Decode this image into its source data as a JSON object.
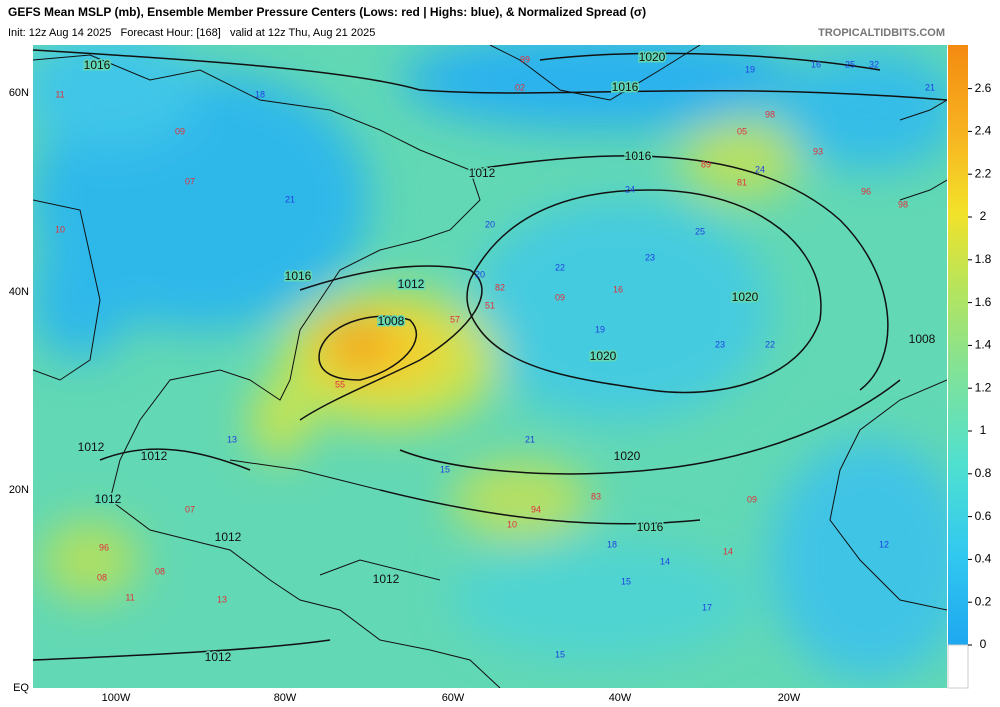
{
  "header": {
    "title": "GEFS Mean MSLP (mb), Ensemble Member Pressure Centers (Lows: red | Highs: blue), & Normalized Spread (σ)",
    "subtitle": "Init: 12z Aug 14 2025   Forecast Hour: [168]   valid at 12z Thu, Aug 21 2025",
    "source": "TROPICALTIDBITS.COM"
  },
  "map": {
    "lat_labels": [
      "60N",
      "40N",
      "20N",
      "EQ"
    ],
    "lon_labels": [
      "100W",
      "80W",
      "60W",
      "40W",
      "20W"
    ],
    "isobars": [
      "1016",
      "1020",
      "1016",
      "1016",
      "1012",
      "1016",
      "1012",
      "1008",
      "1020",
      "1020",
      "1020",
      "1016",
      "1012",
      "1012",
      "1012",
      "1012",
      "1012",
      "1012",
      "1008"
    ],
    "lows": [
      "09",
      "11",
      "02",
      "99",
      "98",
      "05",
      "07",
      "89",
      "81",
      "93",
      "96",
      "98",
      "10",
      "55",
      "57",
      "51",
      "82",
      "09",
      "16",
      "83",
      "94",
      "10",
      "96",
      "08",
      "11",
      "13",
      "07",
      "09",
      "14",
      "08"
    ],
    "highs": [
      "16",
      "25",
      "32",
      "21",
      "18",
      "20",
      "24",
      "23",
      "25",
      "22",
      "19",
      "23",
      "21",
      "15",
      "13",
      "18",
      "17",
      "15",
      "14",
      "22",
      "20",
      "24",
      "21",
      "19",
      "15",
      "12"
    ]
  },
  "colorbar": {
    "ticks": [
      0,
      0.2,
      0.4,
      0.6,
      0.8,
      1,
      1.2,
      1.4,
      1.6,
      1.8,
      2,
      2.2,
      2.4,
      2.6
    ]
  }
}
